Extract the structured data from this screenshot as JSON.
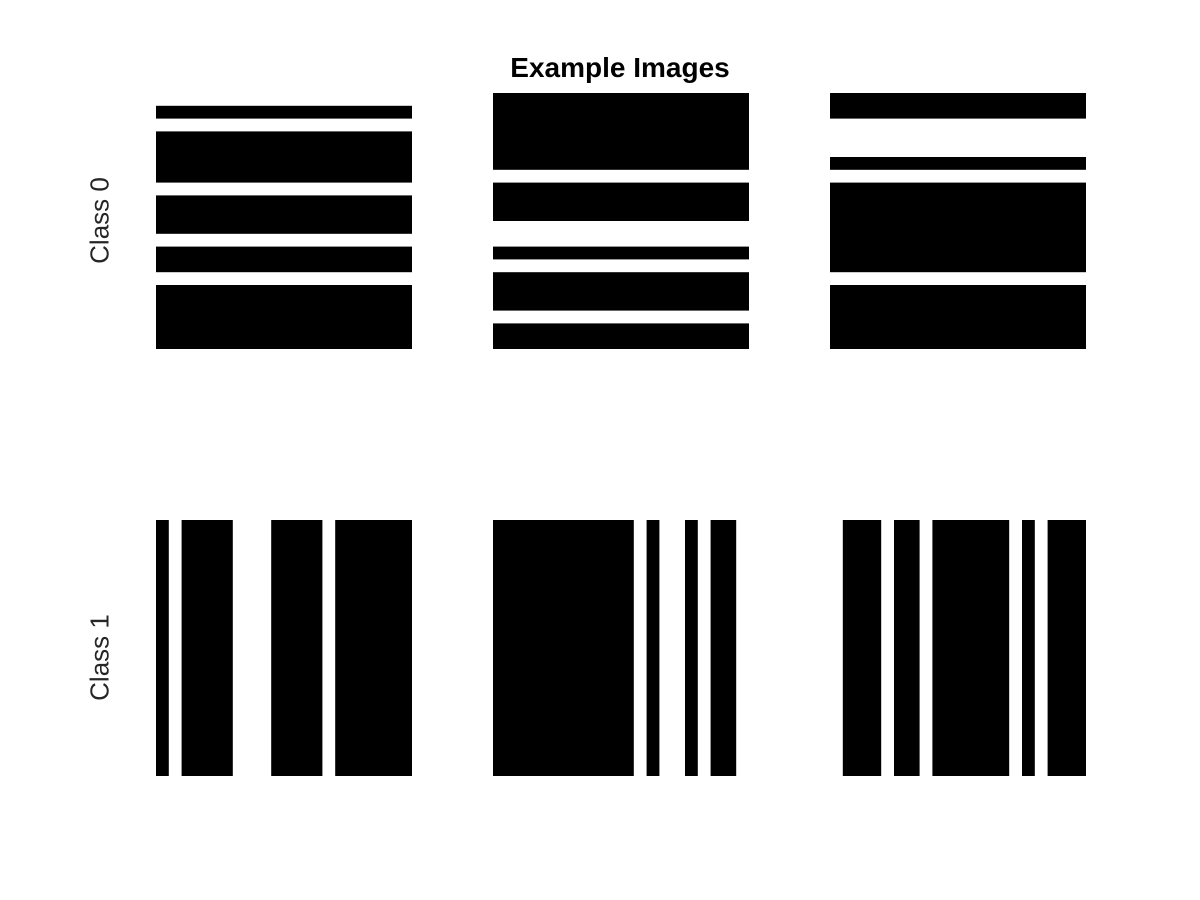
{
  "title": "Example Images",
  "ink_color": "#000000",
  "background_color": "#ffffff",
  "grid": {
    "pixels": 20
  },
  "rows": [
    {
      "label": "Class 0",
      "orientation": "horizontal",
      "images": [
        {
          "stripes": [
            [
              1,
              2
            ],
            [
              3,
              7
            ],
            [
              8,
              11
            ],
            [
              12,
              14
            ],
            [
              15,
              20
            ]
          ]
        },
        {
          "stripes": [
            [
              0,
              6
            ],
            [
              7,
              10
            ],
            [
              12,
              13
            ],
            [
              14,
              17
            ],
            [
              18,
              20
            ]
          ]
        },
        {
          "stripes": [
            [
              0,
              2
            ],
            [
              5,
              6
            ],
            [
              7,
              14
            ],
            [
              15,
              20
            ]
          ]
        }
      ]
    },
    {
      "label": "Class 1",
      "orientation": "vertical",
      "images": [
        {
          "stripes": [
            [
              0,
              1
            ],
            [
              2,
              6
            ],
            [
              9,
              13
            ],
            [
              14,
              20
            ]
          ]
        },
        {
          "stripes": [
            [
              0,
              11
            ],
            [
              12,
              13
            ],
            [
              15,
              16
            ],
            [
              17,
              19
            ]
          ]
        },
        {
          "stripes": [
            [
              1,
              4
            ],
            [
              5,
              7
            ],
            [
              8,
              14
            ],
            [
              15,
              16
            ],
            [
              17,
              20
            ]
          ]
        }
      ]
    }
  ]
}
